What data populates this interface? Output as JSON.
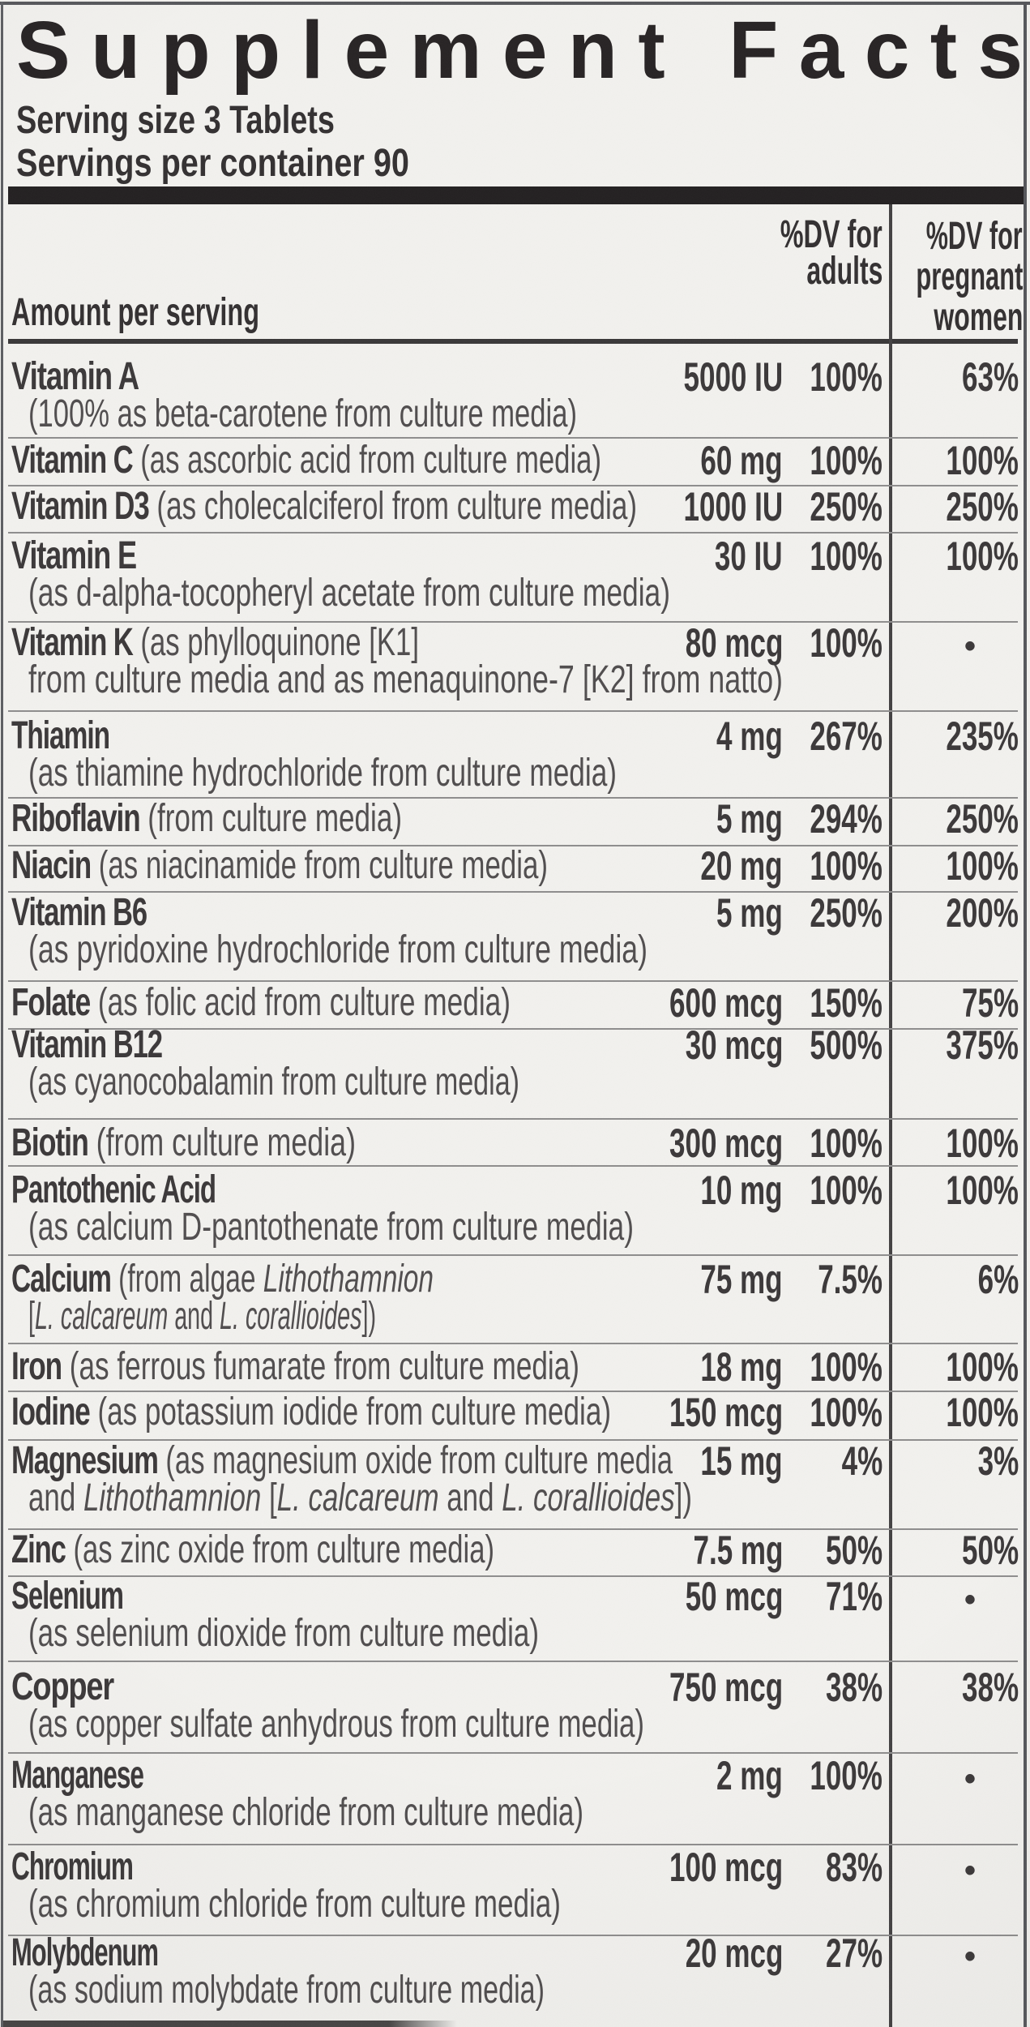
{
  "label": {
    "title": "Supplement Facts",
    "serving_size": "Serving size 3 Tablets",
    "servings_per_container": "Servings per container 90"
  },
  "table": {
    "amount_header": "Amount per serving",
    "adults_header_lines": [
      "%DV for",
      "adults"
    ],
    "pregnant_header_lines": [
      "%DV for",
      "pregnant",
      "women"
    ],
    "bullet": "•",
    "rows": [
      {
        "name": "Vitamin A",
        "amount": "5000 IU",
        "dv_adults": "100%",
        "dv_pregnant": "63%",
        "note_line2": [
          {
            "t": "(100% as beta-carotene from culture media)"
          }
        ]
      },
      {
        "name": "Vitamin C",
        "name_note": [
          {
            "t": " (as ascorbic acid from culture media)"
          }
        ],
        "amount": "60 mg",
        "dv_adults": "100%",
        "dv_pregnant": "100%"
      },
      {
        "name": "Vitamin D3",
        "name_note": [
          {
            "t": " (as cholecalciferol from culture media)"
          }
        ],
        "amount": "1000 IU",
        "dv_adults": "250%",
        "dv_pregnant": "250%"
      },
      {
        "name": "Vitamin E",
        "amount": "30 IU",
        "dv_adults": "100%",
        "dv_pregnant": "100%",
        "note_line2": [
          {
            "t": "(as d-alpha-tocopheryl acetate from culture media)"
          }
        ]
      },
      {
        "name": "Vitamin K",
        "name_note": [
          {
            "t": " (as phylloquinone [K1]"
          }
        ],
        "amount": "80 mcg",
        "dv_adults": "100%",
        "dv_pregnant": "•",
        "note_line2": [
          {
            "t": "from culture media and as menaquinone-7 [K2] from natto)"
          }
        ]
      },
      {
        "name": "Thiamin",
        "amount": "4 mg",
        "dv_adults": "267%",
        "dv_pregnant": "235%",
        "note_line2": [
          {
            "t": "(as thiamine hydrochloride from culture media)"
          }
        ]
      },
      {
        "name": "Riboflavin",
        "name_note": [
          {
            "t": " (from culture media)"
          }
        ],
        "amount": "5 mg",
        "dv_adults": "294%",
        "dv_pregnant": "250%"
      },
      {
        "name": "Niacin",
        "name_note": [
          {
            "t": " (as niacinamide from culture media)"
          }
        ],
        "amount": "20 mg",
        "dv_adults": "100%",
        "dv_pregnant": "100%"
      },
      {
        "name": "Vitamin B6",
        "amount": "5 mg",
        "dv_adults": "250%",
        "dv_pregnant": "200%",
        "note_line2": [
          {
            "t": "(as pyridoxine hydrochloride from culture media)"
          }
        ]
      },
      {
        "name": "Folate",
        "name_note": [
          {
            "t": " (as folic acid from culture media)"
          }
        ],
        "amount": "600 mcg",
        "dv_adults": "150%",
        "dv_pregnant": "75%"
      },
      {
        "name": "Vitamin B12",
        "amount": "30 mcg",
        "dv_adults": "500%",
        "dv_pregnant": "375%",
        "note_line2": [
          {
            "t": "(as cyanocobalamin from culture media)"
          }
        ]
      },
      {
        "name": "Biotin",
        "name_note": [
          {
            "t": " (from culture media)"
          }
        ],
        "amount": "300 mcg",
        "dv_adults": "100%",
        "dv_pregnant": "100%"
      },
      {
        "name": "Pantothenic Acid",
        "amount": "10 mg",
        "dv_adults": "100%",
        "dv_pregnant": "100%",
        "note_line2": [
          {
            "t": "(as calcium D-pantothenate from culture media)"
          }
        ]
      },
      {
        "name": "Calcium",
        "name_note": [
          {
            "t": " (from algae "
          },
          {
            "t": "Lithothamnion",
            "i": true
          }
        ],
        "amount": "75 mg",
        "dv_adults": "7.5%",
        "dv_pregnant": "6%",
        "note_line2": [
          {
            "t": "["
          },
          {
            "t": "L. calcareum",
            "i": true
          },
          {
            "t": " and "
          },
          {
            "t": "L. corallioides",
            "i": true
          },
          {
            "t": "])"
          }
        ]
      },
      {
        "name": "Iron",
        "name_note": [
          {
            "t": " (as ferrous fumarate from culture media)"
          }
        ],
        "amount": "18 mg",
        "dv_adults": "100%",
        "dv_pregnant": "100%"
      },
      {
        "name": "Iodine",
        "name_note": [
          {
            "t": " (as potassium iodide from culture media)"
          }
        ],
        "amount": "150 mcg",
        "dv_adults": "100%",
        "dv_pregnant": "100%"
      },
      {
        "name": "Magnesium",
        "name_note": [
          {
            "t": " (as magnesium oxide from culture media"
          }
        ],
        "amount": "15 mg",
        "dv_adults": "4%",
        "dv_pregnant": "3%",
        "note_line2": [
          {
            "t": "and "
          },
          {
            "t": "Lithothamnion",
            "i": true
          },
          {
            "t": " ["
          },
          {
            "t": "L. calcareum",
            "i": true
          },
          {
            "t": " and "
          },
          {
            "t": "L. corallioides",
            "i": true
          },
          {
            "t": "])"
          }
        ]
      },
      {
        "name": "Zinc",
        "name_note": [
          {
            "t": " (as zinc oxide from culture media)"
          }
        ],
        "amount": "7.5 mg",
        "dv_adults": "50%",
        "dv_pregnant": "50%"
      },
      {
        "name": "Selenium",
        "amount": "50 mcg",
        "dv_adults": "71%",
        "dv_pregnant": "•",
        "note_line2": [
          {
            "t": "(as selenium dioxide from culture media)"
          }
        ]
      },
      {
        "name": "Copper",
        "amount": "750 mcg",
        "dv_adults": "38%",
        "dv_pregnant": "38%",
        "note_line2": [
          {
            "t": "(as copper sulfate anhydrous from culture media)"
          }
        ]
      },
      {
        "name": "Manganese",
        "amount": "2 mg",
        "dv_adults": "100%",
        "dv_pregnant": "•",
        "note_line2": [
          {
            "t": "(as manganese chloride from culture media)"
          }
        ]
      },
      {
        "name": "Chromium",
        "amount": "100 mcg",
        "dv_adults": "83%",
        "dv_pregnant": "•",
        "note_line2": [
          {
            "t": "(as chromium chloride from culture media)"
          }
        ]
      },
      {
        "name": "Molybdenum",
        "amount": "20 mcg",
        "dv_adults": "27%",
        "dv_pregnant": "•",
        "note_line2": [
          {
            "t": "(as sodium molybdate from culture media)"
          }
        ]
      }
    ]
  }
}
